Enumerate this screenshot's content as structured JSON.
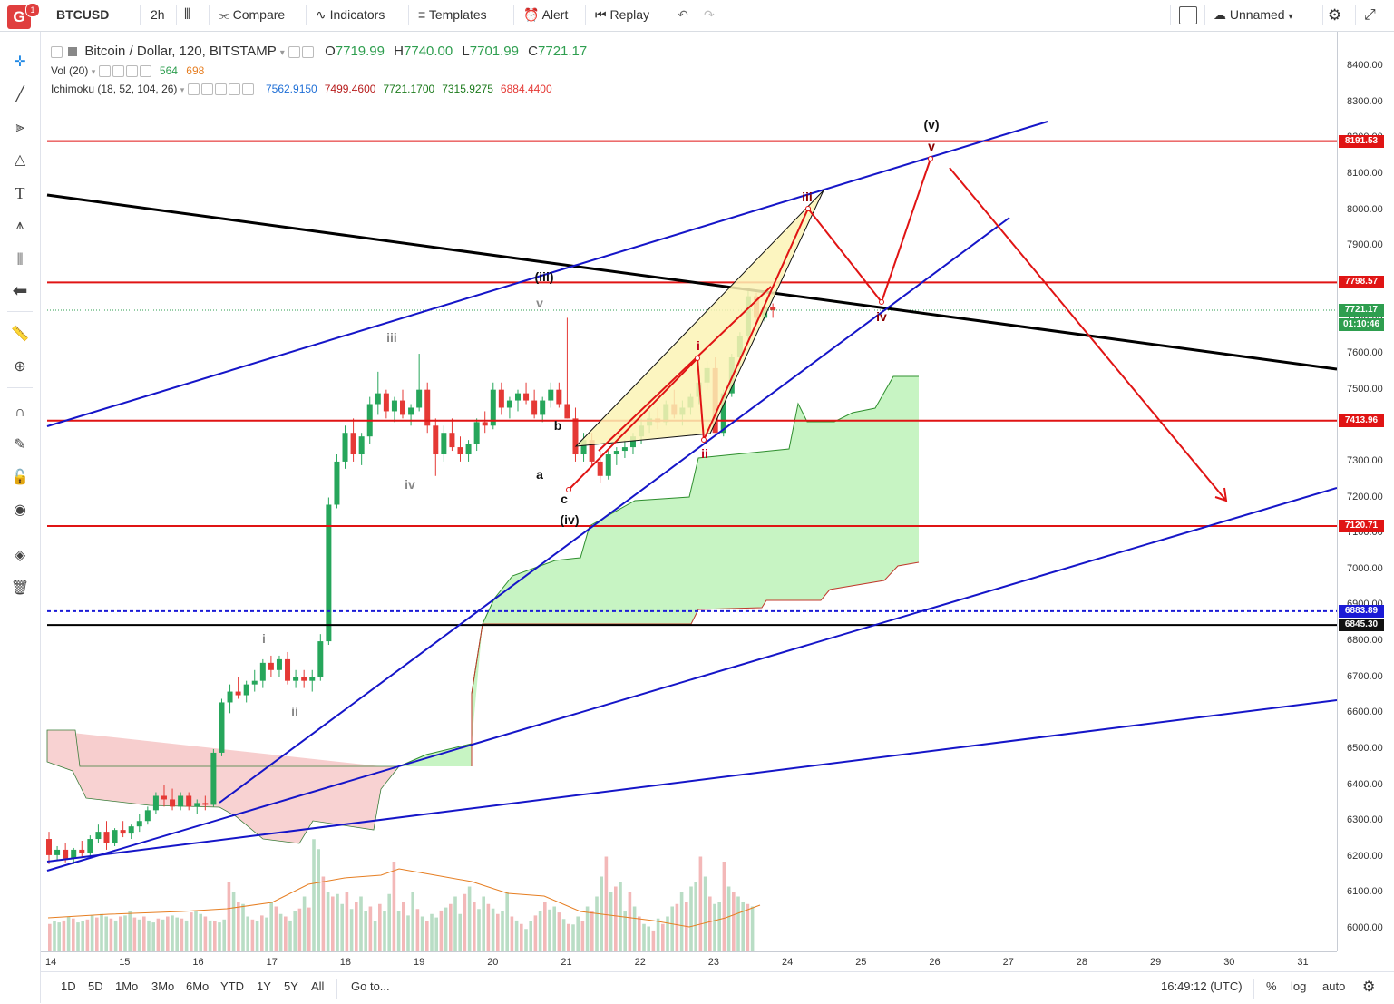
{
  "topbar": {
    "logo_letter": "G",
    "notification_count": "1",
    "symbol": "BTCUSD",
    "interval": "2h",
    "compare_label": "Compare",
    "indicators_label": "Indicators",
    "templates_label": "Templates",
    "alert_label": "Alert",
    "replay_label": "Replay",
    "layout_name": "Unnamed"
  },
  "legend": {
    "title": "Bitcoin / Dollar, 120, BITSTAMP",
    "o_key": "O",
    "o_val": "7719.99",
    "h_key": "H",
    "h_val": "7740.00",
    "l_key": "L",
    "l_val": "7701.99",
    "c_key": "C",
    "c_val": "7721.17",
    "vol_label": "Vol (20)",
    "vol_val1": "564",
    "vol_val2": "698",
    "ichimoku_label": "Ichimoku (18, 52, 104, 26)",
    "ich_vals": [
      "7562.9150",
      "7499.4600",
      "7721.1700",
      "7315.9275",
      "6884.4400"
    ],
    "ich_colors": [
      "#1f6fd6",
      "#b71c1c",
      "#1b7a1b",
      "#1b7a1b",
      "#e53935"
    ]
  },
  "price_scale": {
    "labels": [
      "8400.00",
      "8300.00",
      "8200.00",
      "8100.00",
      "8000.00",
      "7900.00",
      "7800.00",
      "7700.00",
      "7600.00",
      "7500.00",
      "7400.00",
      "7300.00",
      "7200.00",
      "7100.00",
      "7000.00",
      "6900.00",
      "6800.00",
      "6700.00",
      "6600.00",
      "6500.00",
      "6400.00",
      "6300.00",
      "6200.00",
      "6100.00",
      "6000.00"
    ],
    "tags": [
      {
        "text": "8191.53",
        "color": "#e01414"
      },
      {
        "text": "7798.57",
        "color": "#e01414"
      },
      {
        "text": "7721.17",
        "color": "#2e9e4f"
      },
      {
        "text": "01:10:46",
        "color": "#2e9e4f"
      },
      {
        "text": "7413.96",
        "color": "#e01414"
      },
      {
        "text": "7120.71",
        "color": "#e01414"
      },
      {
        "text": "6883.89",
        "color": "#1b1bd6"
      },
      {
        "text": "6845.30",
        "color": "#111111"
      }
    ]
  },
  "time_scale": {
    "labels": [
      "14",
      "15",
      "16",
      "17",
      "18",
      "19",
      "20",
      "21",
      "22",
      "23",
      "24",
      "25",
      "26",
      "27",
      "28",
      "29",
      "30",
      "31"
    ]
  },
  "bottombar": {
    "ranges": [
      "1D",
      "5D",
      "1Mo",
      "3Mo",
      "6Mo",
      "YTD",
      "1Y",
      "5Y",
      "All"
    ],
    "goto_label": "Go to...",
    "clock": "16:49:12 (UTC)",
    "pct_label": "%",
    "log_label": "log",
    "auto_label": "auto"
  },
  "annotations": {
    "wave_labels": [
      "i",
      "ii",
      "iii",
      "iv",
      "v",
      "(iii)",
      "a",
      "b",
      "c",
      "(iv)",
      "i",
      "ii",
      "iii",
      "iv",
      "v",
      "(v)"
    ]
  },
  "colors": {
    "bull": "#26a65b",
    "bear": "#e53935",
    "hline": "#e01414",
    "trendline": "#1515c8",
    "accent": "#1e88e5"
  }
}
